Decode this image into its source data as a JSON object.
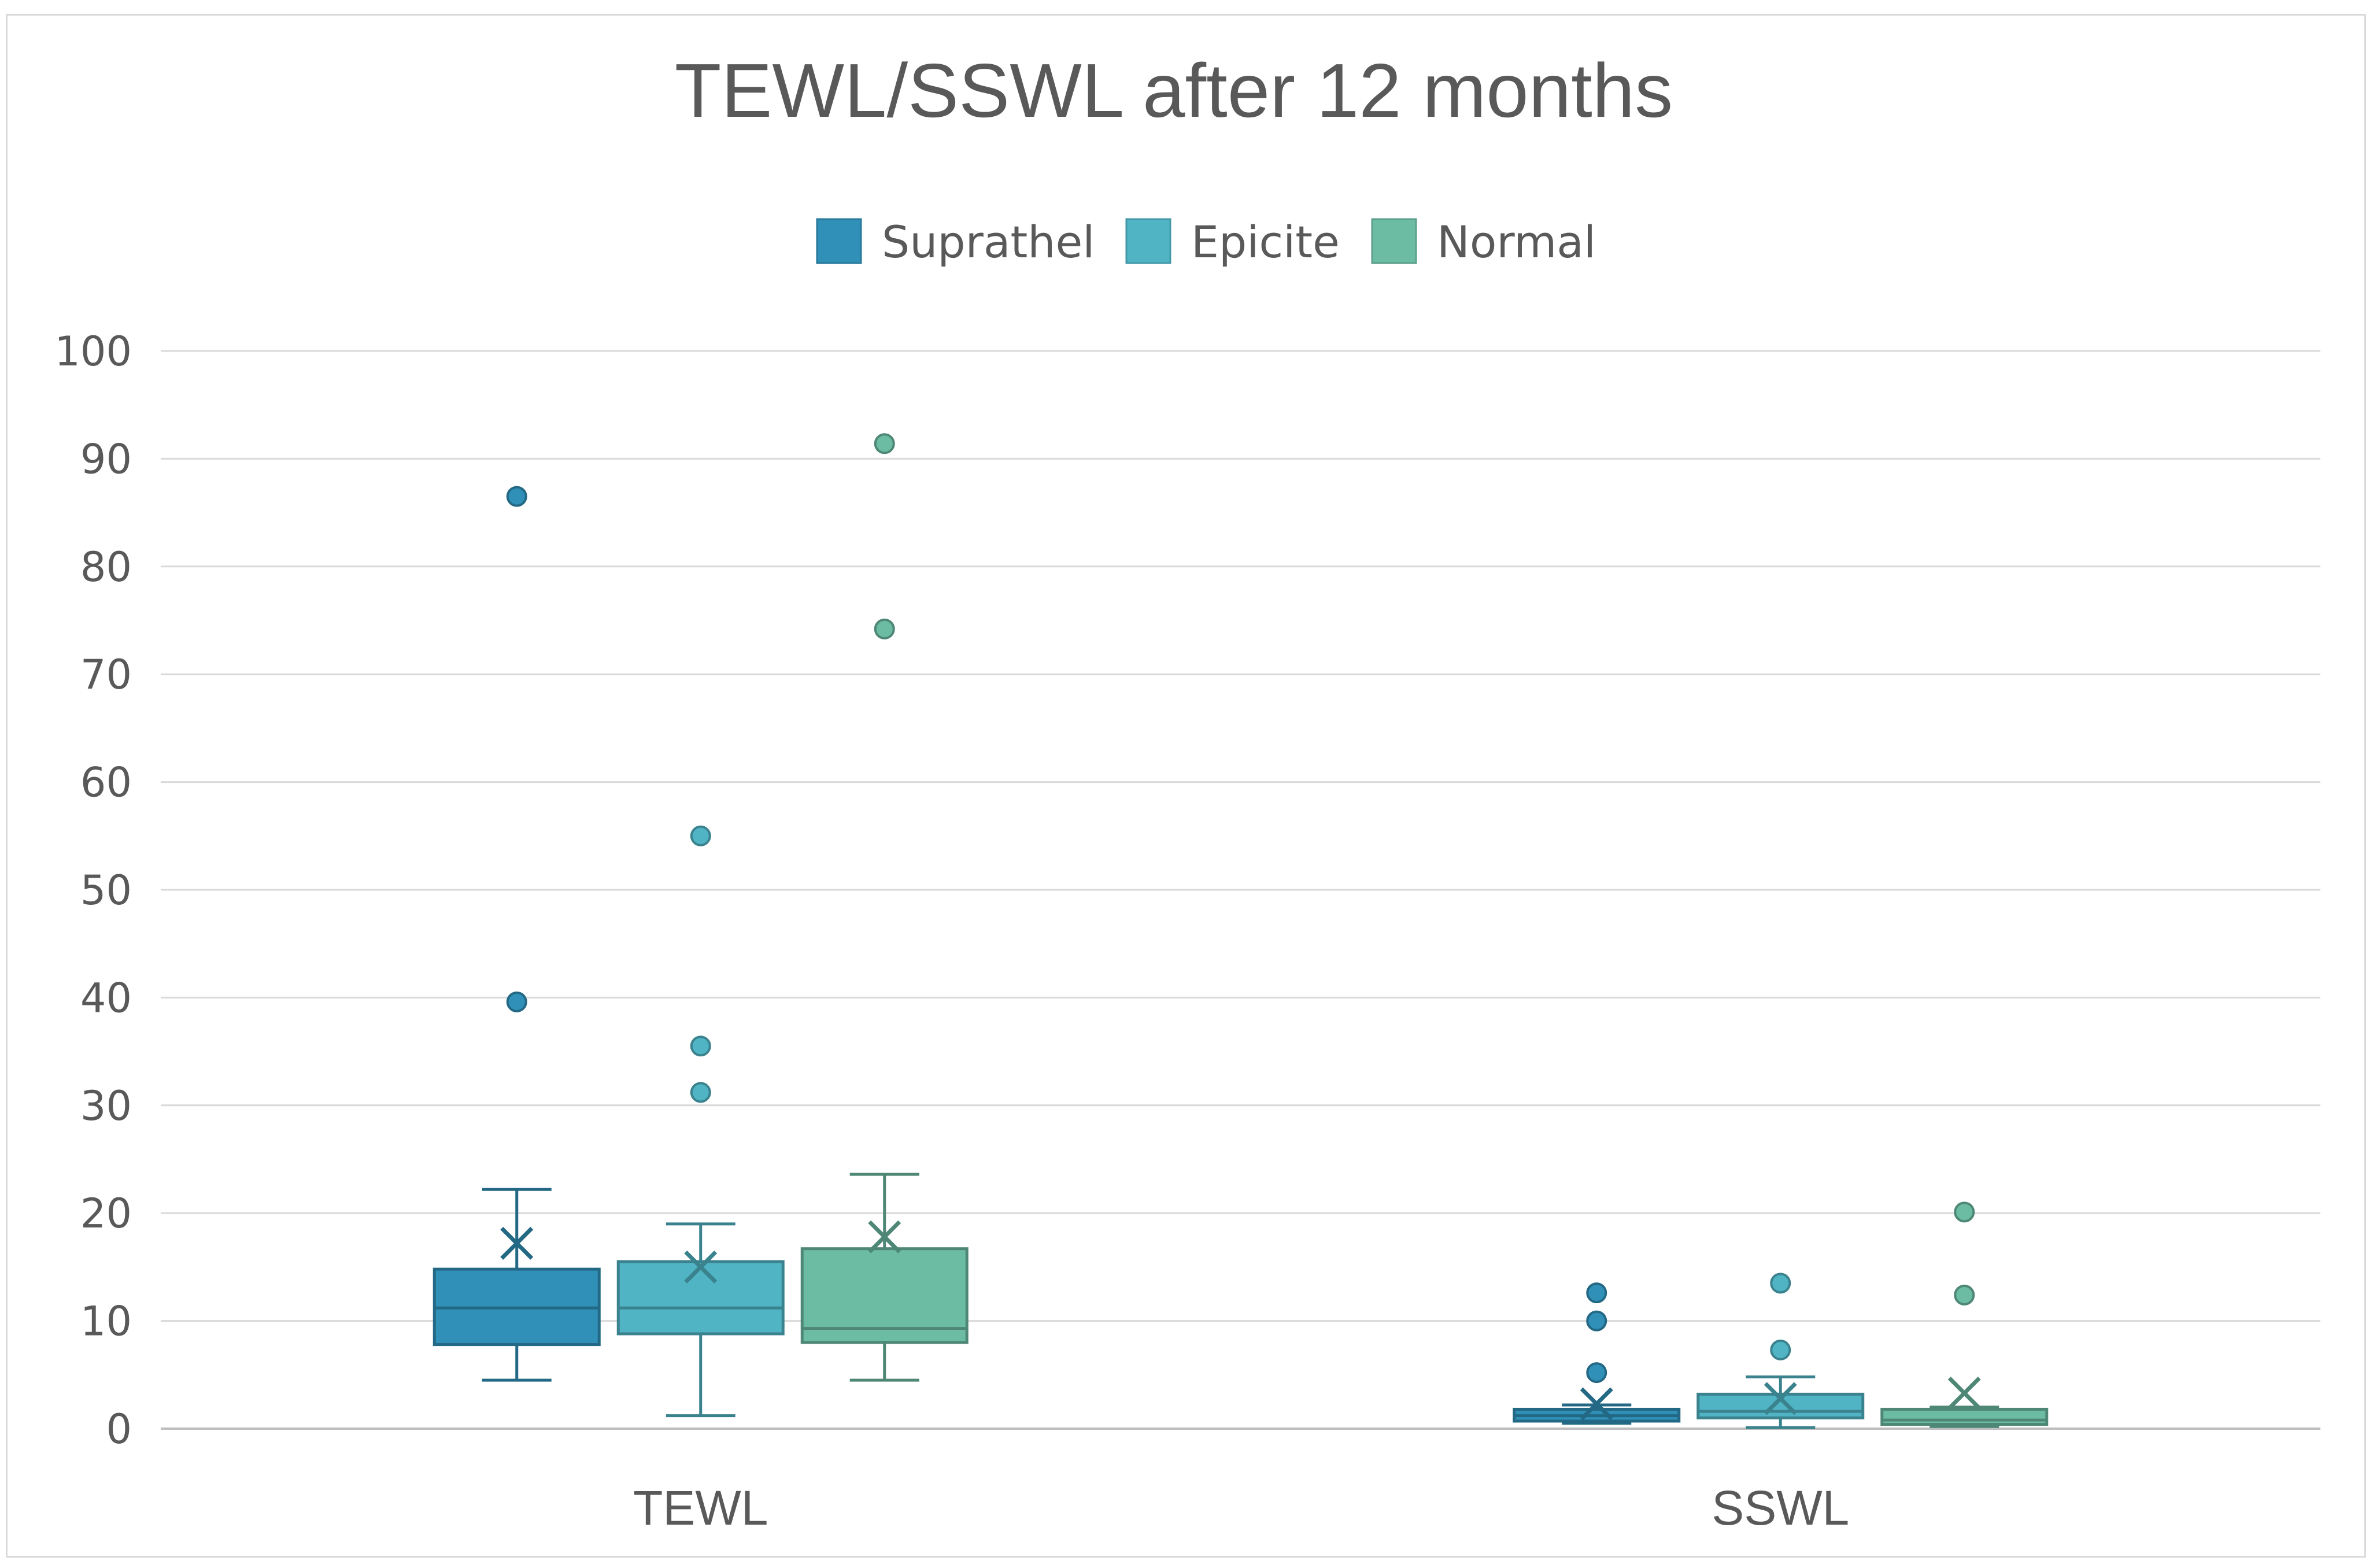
{
  "chart_data": {
    "type": "box",
    "title": "TEWL/SSWL after 12 months",
    "xlabel": "",
    "ylabel": "",
    "ylim": [
      0,
      100
    ],
    "yticks": [
      0,
      10,
      20,
      30,
      40,
      50,
      60,
      70,
      80,
      90,
      100
    ],
    "grid": true,
    "legend_position": "top",
    "categories": [
      "TEWL",
      "SSWL"
    ],
    "series": [
      {
        "name": "Suprathel",
        "color": "#3090b8",
        "boxes": [
          {
            "category": "TEWL",
            "whisker_low": 4.5,
            "q1": 7.8,
            "median": 11.2,
            "q3": 14.8,
            "whisker_high": 22.2,
            "mean": 17.2,
            "outliers": [
              39.6,
              86.5
            ]
          },
          {
            "category": "SSWL",
            "whisker_low": 0.5,
            "q1": 0.7,
            "median": 1.2,
            "q3": 1.8,
            "whisker_high": 2.2,
            "mean": 2.3,
            "outliers": [
              5.2,
              10.0,
              12.6
            ]
          }
        ]
      },
      {
        "name": "Epicite",
        "color": "#50b4c4",
        "boxes": [
          {
            "category": "TEWL",
            "whisker_low": 1.2,
            "q1": 8.8,
            "median": 11.2,
            "q3": 15.5,
            "whisker_high": 19.0,
            "mean": 15.0,
            "outliers": [
              31.2,
              35.5,
              55.0
            ]
          },
          {
            "category": "SSWL",
            "whisker_low": 0.1,
            "q1": 1.0,
            "median": 1.6,
            "q3": 3.2,
            "whisker_high": 4.8,
            "mean": 2.8,
            "outliers": [
              7.3,
              13.5
            ]
          }
        ]
      },
      {
        "name": "Normal",
        "color": "#6cbca4",
        "boxes": [
          {
            "category": "TEWL",
            "whisker_low": 4.5,
            "q1": 8.0,
            "median": 9.3,
            "q3": 16.7,
            "whisker_high": 23.6,
            "mean": 17.8,
            "outliers": [
              74.2,
              91.4
            ]
          },
          {
            "category": "SSWL",
            "whisker_low": 0.2,
            "q1": 0.4,
            "median": 0.8,
            "q3": 1.8,
            "whisker_high": 2.0,
            "mean": 3.3,
            "outliers": [
              12.4,
              20.1
            ]
          }
        ]
      }
    ]
  }
}
